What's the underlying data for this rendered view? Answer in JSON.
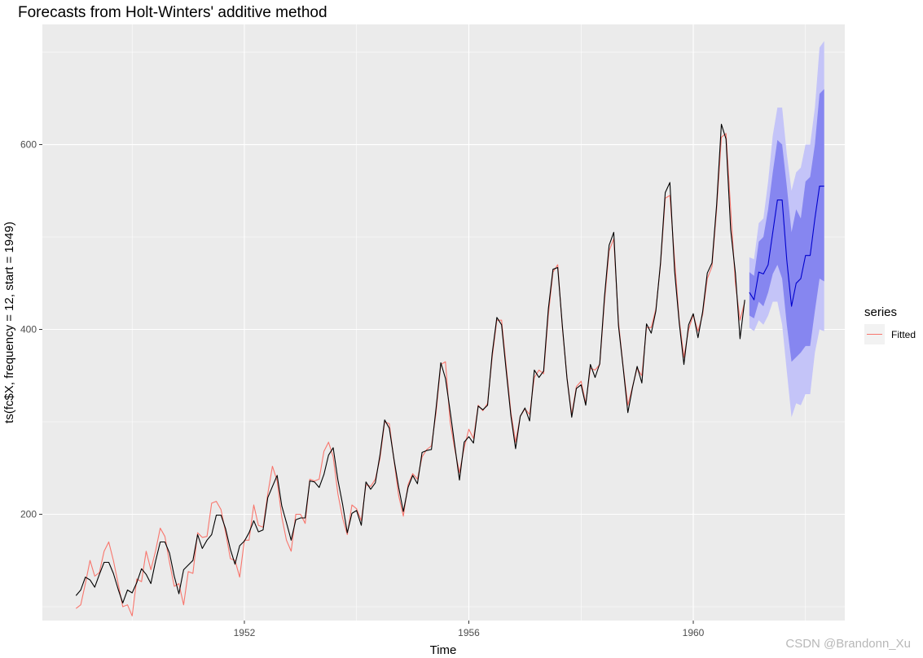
{
  "chart_data": {
    "type": "line",
    "title": "Forecasts from Holt-Winters' additive method",
    "xlabel": "Time",
    "ylabel": "ts(fc$X, frequency = 12, start = 1949)",
    "xlim": [
      1948.4,
      1962.7
    ],
    "ylim": [
      85,
      730
    ],
    "x_ticks": [
      1952,
      1956,
      1960
    ],
    "y_ticks": [
      200,
      400,
      600
    ],
    "grid": true,
    "legend": {
      "title": "series",
      "position": "right",
      "entries": [
        {
          "label": "Fitted",
          "color": "#F8766D"
        }
      ]
    },
    "observed": {
      "start": 1949,
      "frequency": 12,
      "color": "#000000",
      "values": [
        112,
        118,
        132,
        129,
        121,
        135,
        148,
        148,
        136,
        119,
        104,
        118,
        115,
        126,
        141,
        135,
        125,
        149,
        170,
        170,
        158,
        133,
        114,
        140,
        145,
        150,
        178,
        163,
        172,
        178,
        199,
        199,
        184,
        162,
        146,
        166,
        171,
        180,
        193,
        181,
        183,
        218,
        230,
        242,
        209,
        191,
        172,
        194,
        196,
        196,
        236,
        235,
        229,
        243,
        264,
        272,
        237,
        211,
        180,
        201,
        204,
        188,
        235,
        227,
        234,
        264,
        302,
        293,
        259,
        229,
        203,
        229,
        242,
        233,
        267,
        269,
        270,
        315,
        364,
        347,
        312,
        274,
        237,
        278,
        284,
        277,
        317,
        313,
        318,
        374,
        413,
        405,
        355,
        306,
        271,
        306,
        315,
        301,
        356,
        348,
        355,
        422,
        465,
        467,
        404,
        347,
        305,
        336,
        340,
        318,
        362,
        348,
        363,
        435,
        491,
        505,
        404,
        359,
        310,
        337,
        360,
        342,
        406,
        396,
        420,
        472,
        548,
        559,
        463,
        407,
        362,
        405,
        417,
        391,
        419,
        461,
        472,
        535,
        622,
        606,
        508,
        461,
        390,
        432
      ]
    },
    "fitted": {
      "start": 1949,
      "frequency": 12,
      "color": "#F8766D",
      "values": [
        98,
        102,
        125,
        150,
        133,
        137,
        160,
        170,
        150,
        125,
        100,
        102,
        90,
        130,
        127,
        160,
        140,
        160,
        185,
        176,
        148,
        122,
        125,
        102,
        138,
        136,
        180,
        175,
        176,
        212,
        214,
        205,
        180,
        152,
        150,
        132,
        172,
        172,
        210,
        188,
        186,
        222,
        252,
        236,
        197,
        172,
        160,
        200,
        200,
        190,
        238,
        236,
        238,
        268,
        278,
        262,
        222,
        196,
        178,
        210,
        206,
        193,
        232,
        230,
        238,
        260,
        300,
        298,
        258,
        220,
        198,
        232,
        244,
        238,
        262,
        270,
        274,
        310,
        362,
        365,
        300,
        270,
        245,
        272,
        292,
        282,
        318,
        312,
        320,
        370,
        410,
        410,
        360,
        310,
        278,
        306,
        314,
        308,
        348,
        356,
        352,
        416,
        462,
        470,
        402,
        348,
        308,
        338,
        344,
        320,
        358,
        356,
        362,
        430,
        485,
        498,
        408,
        360,
        318,
        338,
        358,
        350,
        402,
        402,
        422,
        470,
        542,
        545,
        475,
        410,
        370,
        400,
        416,
        398,
        416,
        455,
        468,
        530,
        608,
        612,
        530,
        450,
        410,
        430
      ]
    },
    "forecast": {
      "start": 1961,
      "frequency": 12,
      "color": "#0000CD",
      "values": [
        440,
        432,
        462,
        460,
        470,
        505,
        540,
        540,
        475,
        425,
        450,
        455
      ],
      "extension_1962": [
        480,
        480,
        520,
        555,
        555
      ],
      "lo80": [
        415,
        412,
        430,
        425,
        440,
        460,
        470,
        455,
        405,
        365,
        370,
        375
      ],
      "hi80": [
        462,
        458,
        495,
        500,
        530,
        570,
        605,
        600,
        555,
        505,
        530,
        520
      ],
      "lo95": [
        402,
        398,
        410,
        405,
        415,
        430,
        430,
        405,
        355,
        305,
        320,
        318
      ],
      "hi95": [
        478,
        476,
        515,
        520,
        560,
        610,
        640,
        640,
        590,
        550,
        570,
        575
      ],
      "lo80_ext": [
        382,
        382,
        420,
        455,
        452
      ],
      "hi80_ext": [
        560,
        565,
        600,
        655,
        660
      ],
      "lo95_ext": [
        330,
        330,
        375,
        400,
        398
      ],
      "hi95_ext": [
        600,
        600,
        640,
        705,
        712
      ],
      "band80_color": "#8686F0",
      "band95_color": "#C4C4F8"
    }
  },
  "watermark": "CSDN @Brandonn_Xu"
}
